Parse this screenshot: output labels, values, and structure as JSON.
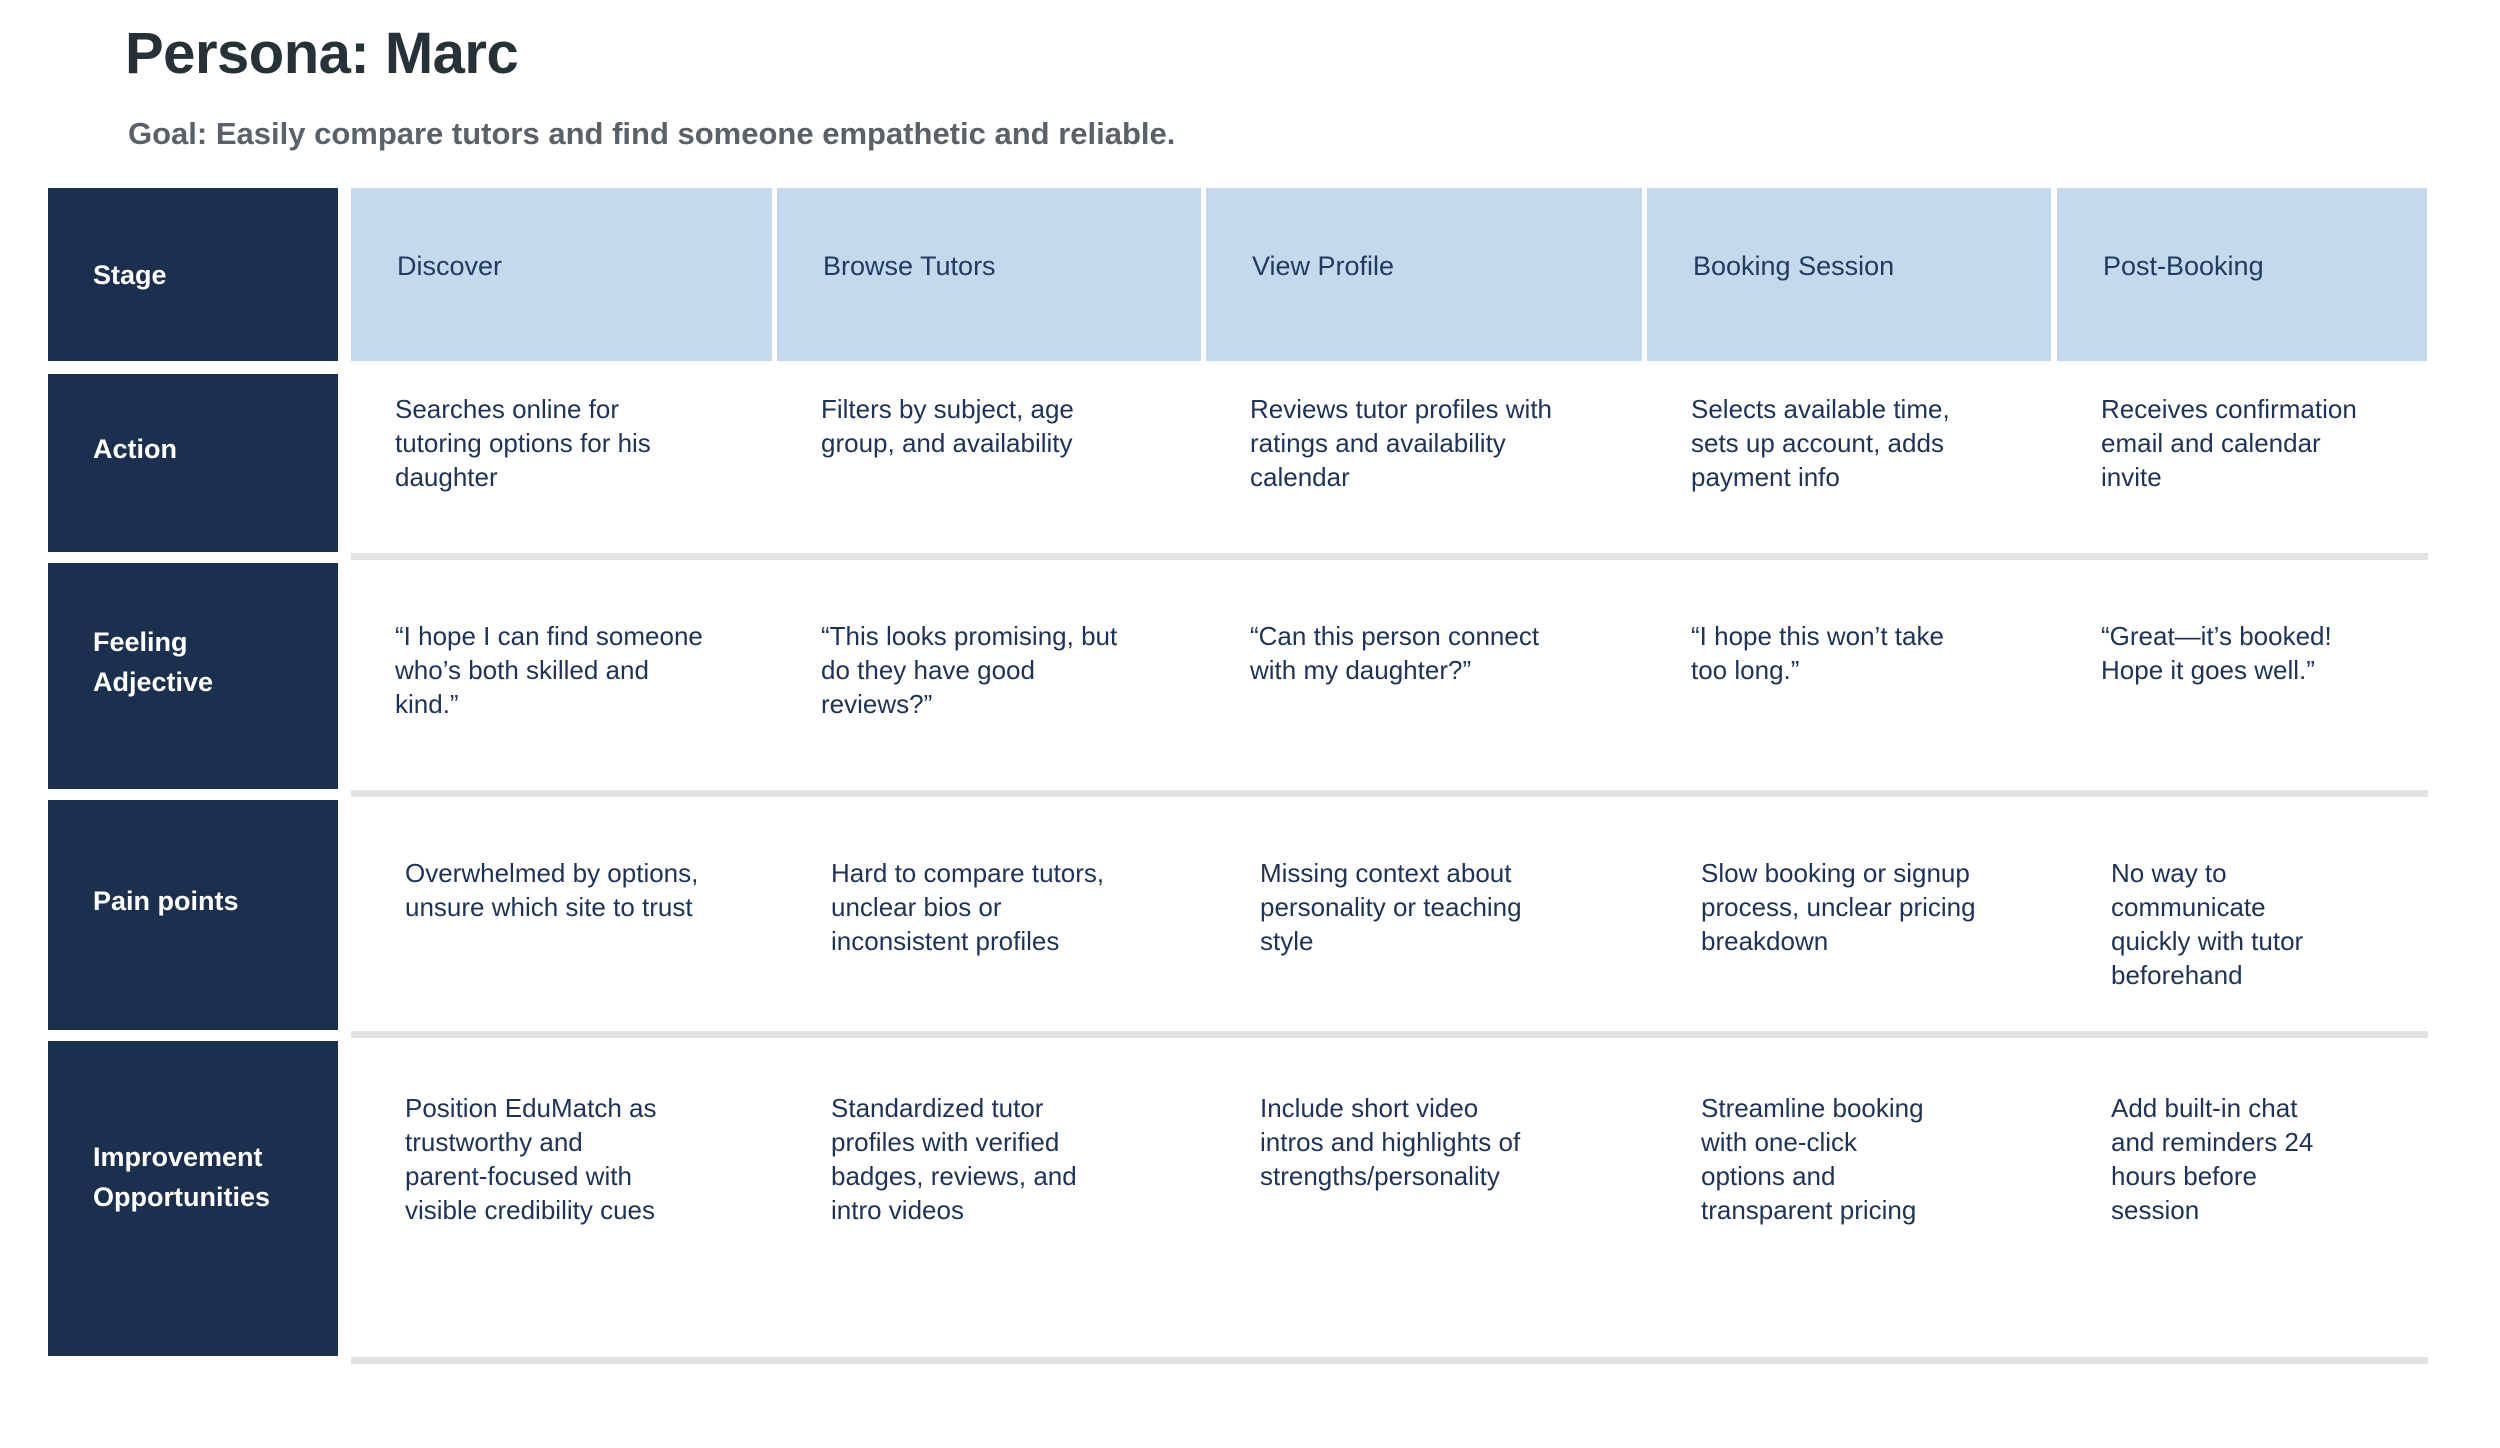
{
  "page": {
    "title": "Persona: Marc",
    "goal": "Goal: Easily compare tutors and find someone empathetic and reliable."
  },
  "colors": {
    "navy": "#1B2F4E",
    "light_blue": "#C5D9EC",
    "stage_text": "#1F3B60",
    "body_text": "#1E3357",
    "title_text": "#263238",
    "goal_text": "#5A6268",
    "separator": "#E2E2E2"
  },
  "journey_map": {
    "corner_label": "Stage",
    "stages": [
      "Discover",
      "Browse Tutors",
      "View Profile",
      "Booking Session",
      "Post-Booking"
    ],
    "rows": [
      {
        "label": "Action",
        "cells": [
          "Searches online for\ntutoring options for his\ndaughter",
          "Filters by subject, age\ngroup, and availability",
          "Reviews tutor profiles with\nratings and availability\ncalendar",
          "Selects available time,\nsets up account, adds\npayment info",
          "Receives confirmation\nemail and calendar\ninvite"
        ]
      },
      {
        "label": "Feeling\nAdjective",
        "cells": [
          "“I hope I can find someone\nwho’s both skilled and\nkind.”",
          "“This looks promising, but\ndo they have good\nreviews?”",
          "“Can this person connect\nwith my daughter?”",
          "“I hope this won’t take\ntoo long.”",
          "“Great—it’s booked!\nHope it goes well.”"
        ]
      },
      {
        "label": "Pain points",
        "cells": [
          "Overwhelmed by options,\nunsure which site to trust",
          "Hard to compare tutors,\nunclear bios or\ninconsistent profiles",
          "Missing context about\npersonality or teaching\nstyle",
          "Slow booking or signup\nprocess, unclear pricing\nbreakdown",
          "No way to\ncommunicate\nquickly with tutor\nbeforehand"
        ]
      },
      {
        "label": "Improvement\nOpportunities",
        "cells": [
          "Position EduMatch as\ntrustworthy and\nparent-focused with\nvisible credibility cues",
          "Standardized tutor\nprofiles with verified\nbadges, reviews, and\nintro videos",
          "Include short video\nintros and highlights of\nstrengths/personality",
          "Streamline booking\nwith one-click\noptions and\ntransparent pricing",
          "Add built-in chat\nand reminders 24\nhours before\nsession"
        ]
      }
    ]
  }
}
